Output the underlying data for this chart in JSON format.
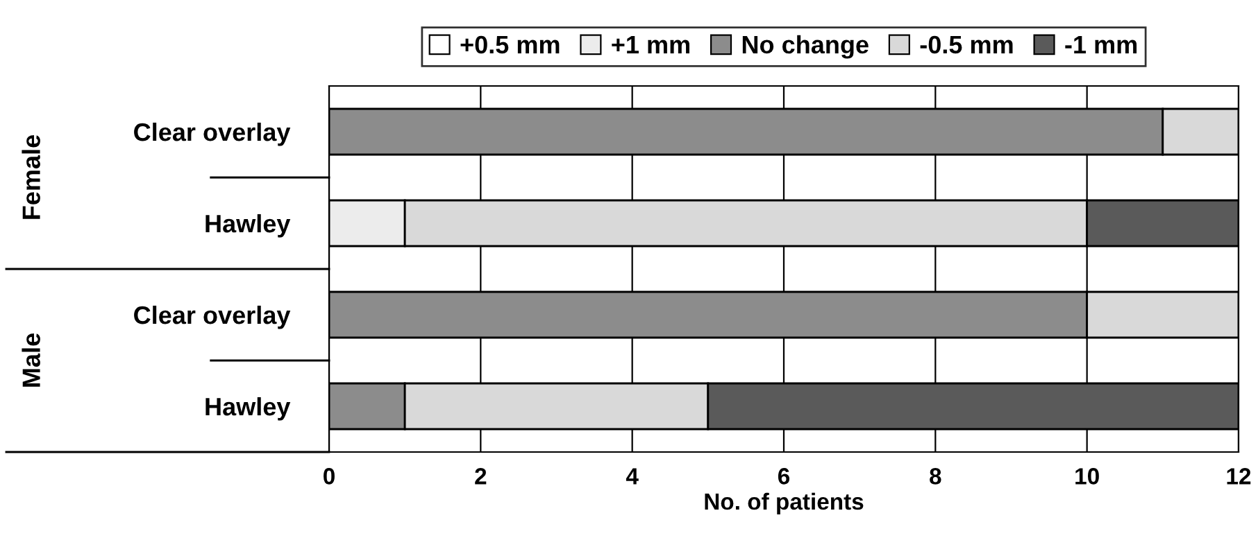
{
  "chart_data": {
    "type": "bar",
    "orientation": "horizontal",
    "stacked": true,
    "categories": [
      "Clear overlay",
      "Hawley",
      "Clear overlay",
      "Hawley"
    ],
    "annotations": [
      "Female",
      "Male"
    ],
    "xlabel": "No. of patients",
    "xlim": [
      0,
      12
    ],
    "xticks": [
      0,
      2,
      4,
      6,
      8,
      10,
      12
    ],
    "grid": "x",
    "legend": "top",
    "series": [
      {
        "name": "+0.5 mm",
        "color": "#ffffff",
        "values": [
          0,
          0,
          0,
          0
        ]
      },
      {
        "name": "+1 mm",
        "color": "#ececec",
        "values": [
          0,
          1,
          0,
          0
        ]
      },
      {
        "name": "No change",
        "color": "#8c8c8c",
        "values": [
          11,
          0,
          10,
          1
        ]
      },
      {
        "name": "-0.5 mm",
        "color": "#d9d9d9",
        "values": [
          1,
          9,
          2,
          4
        ]
      },
      {
        "name": "-1 mm",
        "color": "#5a5a5a",
        "values": [
          0,
          2,
          0,
          7
        ]
      }
    ]
  }
}
